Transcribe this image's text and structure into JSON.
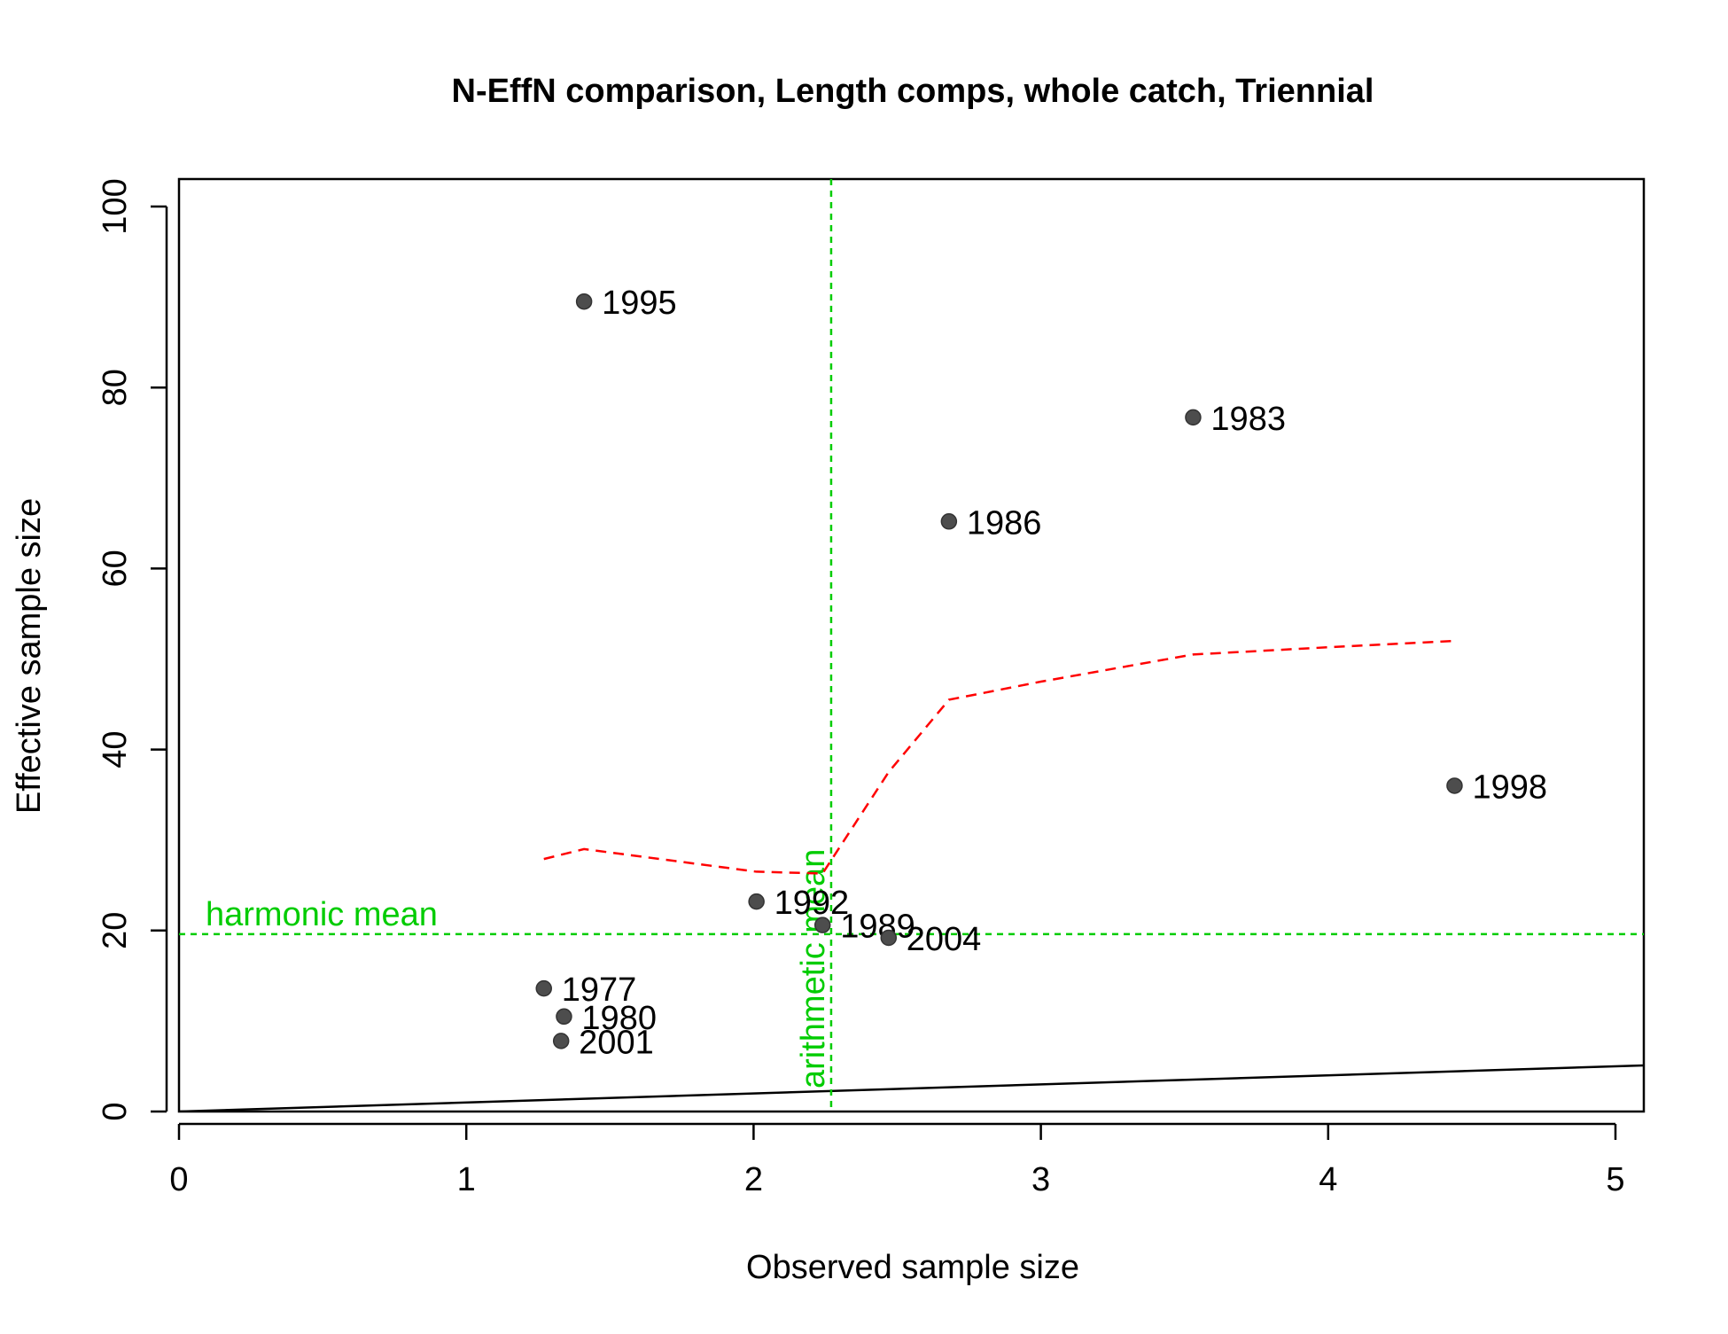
{
  "chart_data": {
    "type": "scatter",
    "title": "N-EffN comparison, Length comps, whole catch, Triennial",
    "xlabel": "Observed sample size",
    "ylabel": "Effective sample size",
    "xlim": [
      0,
      5.1
    ],
    "ylim": [
      0,
      100
    ],
    "xticks": [
      "0",
      "1",
      "2",
      "3",
      "4",
      "5"
    ],
    "yticks": [
      "0",
      "20",
      "40",
      "60",
      "80",
      "100"
    ],
    "grid": false,
    "colors": {
      "points": "#4d4d4d",
      "smoother": "#ff0000",
      "reference": "#00cc00",
      "identity": "#000000"
    },
    "points": [
      {
        "label": "1977",
        "x": 1.27,
        "y": 13.6
      },
      {
        "label": "1980",
        "x": 1.34,
        "y": 10.5
      },
      {
        "label": "1983",
        "x": 3.53,
        "y": 76.7
      },
      {
        "label": "1986",
        "x": 2.68,
        "y": 65.2
      },
      {
        "label": "1989",
        "x": 2.24,
        "y": 20.6
      },
      {
        "label": "1992",
        "x": 2.01,
        "y": 23.2
      },
      {
        "label": "1995",
        "x": 1.41,
        "y": 89.5
      },
      {
        "label": "1998",
        "x": 4.44,
        "y": 36.0
      },
      {
        "label": "2001",
        "x": 1.33,
        "y": 7.8
      },
      {
        "label": "2004",
        "x": 2.47,
        "y": 19.2
      }
    ],
    "smoother": [
      {
        "x": 1.27,
        "y": 27.9
      },
      {
        "x": 1.41,
        "y": 29.0
      },
      {
        "x": 2.01,
        "y": 26.5
      },
      {
        "x": 2.24,
        "y": 26.3
      },
      {
        "x": 2.47,
        "y": 37.5
      },
      {
        "x": 2.68,
        "y": 45.5
      },
      {
        "x": 3.0,
        "y": 47.5
      },
      {
        "x": 3.53,
        "y": 50.5
      },
      {
        "x": 4.0,
        "y": 51.3
      },
      {
        "x": 4.44,
        "y": 52.0
      }
    ],
    "identity_line": {
      "x": [
        0,
        5.1
      ],
      "y": [
        0,
        5.1
      ]
    },
    "harmonic_mean": {
      "label": "harmonic mean",
      "y": 19.6
    },
    "arithmetic_mean": {
      "label": "arithmetic mean",
      "x": 2.27
    }
  }
}
